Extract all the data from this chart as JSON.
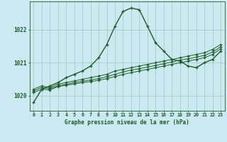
{
  "title": "Graphe pression niveau de la mer (hPa)",
  "background_color": "#cce8f0",
  "grid_color": "#99ccbb",
  "line_color": "#1a5c28",
  "hours": [
    0,
    1,
    2,
    3,
    4,
    5,
    6,
    7,
    8,
    9,
    10,
    11,
    12,
    13,
    14,
    15,
    16,
    17,
    18,
    19,
    20,
    21,
    22,
    23
  ],
  "series1": [
    1019.8,
    1020.2,
    1020.3,
    1020.4,
    1020.55,
    1020.65,
    1020.75,
    1020.9,
    1021.15,
    1021.55,
    1022.1,
    1022.55,
    1022.65,
    1022.6,
    1022.1,
    1021.6,
    1021.35,
    1021.1,
    1021.05,
    1020.9,
    1020.85,
    1021.0,
    1021.1,
    1021.35
  ],
  "series2": [
    1020.2,
    1020.3,
    1020.25,
    1020.35,
    1020.4,
    1020.45,
    1020.5,
    1020.55,
    1020.6,
    1020.65,
    1020.75,
    1020.8,
    1020.85,
    1020.9,
    1020.95,
    1021.0,
    1021.05,
    1021.1,
    1021.15,
    1021.2,
    1021.25,
    1021.3,
    1021.4,
    1021.55
  ],
  "series3": [
    1020.15,
    1020.25,
    1020.22,
    1020.3,
    1020.35,
    1020.4,
    1020.44,
    1020.48,
    1020.52,
    1020.58,
    1020.65,
    1020.72,
    1020.78,
    1020.82,
    1020.87,
    1020.92,
    1020.97,
    1021.02,
    1021.08,
    1021.12,
    1021.17,
    1021.22,
    1021.32,
    1021.48
  ],
  "series4": [
    1020.1,
    1020.2,
    1020.18,
    1020.28,
    1020.32,
    1020.36,
    1020.4,
    1020.43,
    1020.47,
    1020.52,
    1020.58,
    1020.65,
    1020.7,
    1020.75,
    1020.8,
    1020.85,
    1020.9,
    1020.95,
    1021.0,
    1021.05,
    1021.1,
    1021.15,
    1021.25,
    1021.42
  ],
  "ylim": [
    1019.55,
    1022.85
  ],
  "yticks": [
    1020,
    1021,
    1022
  ],
  "xlim": [
    -0.5,
    23.5
  ]
}
